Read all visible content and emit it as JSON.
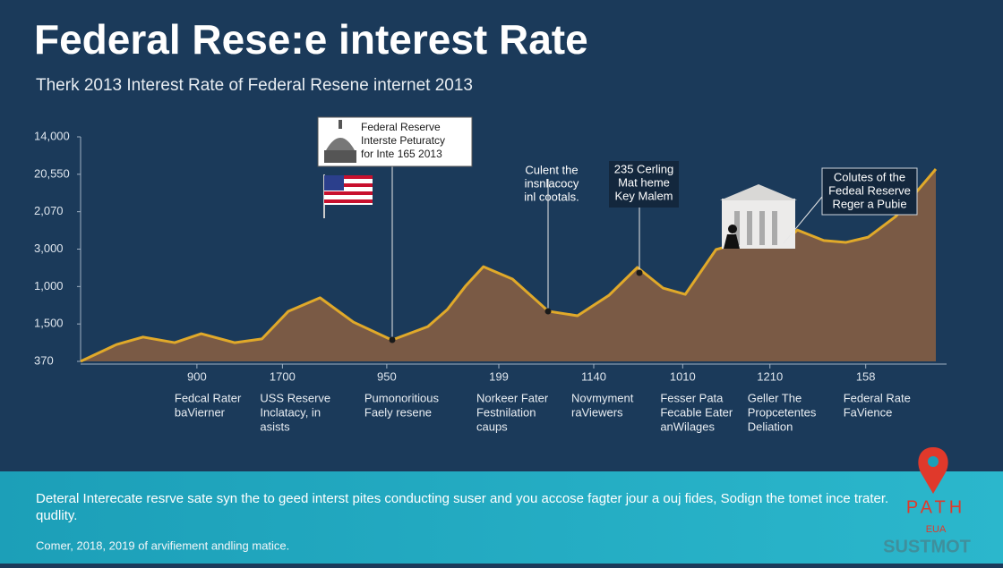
{
  "chart_data": {
    "type": "area",
    "title": "Federal Rese:e interest Rate",
    "subtitle": "Therk 2013 Interest Rate of Federal Resene internet 2013",
    "line_color": "#e0a92a",
    "fill_color": "#7a5a45",
    "xlim": [
      0,
      100
    ],
    "ylim": [
      0,
      6
    ],
    "yticks": [
      {
        "value": 0,
        "label": "370"
      },
      {
        "value": 1,
        "label": "1,500"
      },
      {
        "value": 2,
        "label": "1,000"
      },
      {
        "value": 3,
        "label": "3,000"
      },
      {
        "value": 4,
        "label": "2,070"
      },
      {
        "value": 5,
        "label": "20,550"
      },
      {
        "value": 6,
        "label": "14,000"
      }
    ],
    "xticks": [
      {
        "value": 13.6,
        "label": "900"
      },
      {
        "value": 23.6,
        "label": "1700"
      },
      {
        "value": 35.8,
        "label": "950"
      },
      {
        "value": 48.9,
        "label": "199"
      },
      {
        "value": 60,
        "label": "1140"
      },
      {
        "value": 70.4,
        "label": "1010"
      },
      {
        "value": 80.6,
        "label": "1210"
      },
      {
        "value": 91.8,
        "label": "158"
      }
    ],
    "x_descriptions": [
      [
        "Fedcal Rater",
        "baVierner"
      ],
      [
        "USS Reserve",
        "Inclatacy, in",
        "asists"
      ],
      [
        "Pumonoritious",
        "Faely resene"
      ],
      [
        "Norkeer Fater",
        "Festnilation",
        "caups"
      ],
      [
        "Novmyment",
        "raViewers"
      ],
      [
        "Fesser Pata",
        "Fecable Eater",
        "anWilages"
      ],
      [
        "Geller The",
        "Propcetentes",
        "Deliation"
      ],
      [
        "Federal Rate",
        "FaVience"
      ]
    ],
    "x": [
      0,
      4.2,
      7.3,
      11,
      14.1,
      18,
      21.2,
      24.3,
      28,
      31.9,
      36.4,
      40.6,
      42.9,
      45,
      47.1,
      50.5,
      54.7,
      58.1,
      61.8,
      65.1,
      68.1,
      70.7,
      74.3,
      78.5,
      82.2,
      83.8,
      86.9,
      89.5,
      92.1,
      95.3,
      100
    ],
    "values": [
      0,
      0.45,
      0.65,
      0.5,
      0.74,
      0.5,
      0.6,
      1.34,
      1.7,
      1.05,
      0.57,
      0.93,
      1.39,
      2.01,
      2.53,
      2.2,
      1.34,
      1.22,
      1.77,
      2.51,
      1.96,
      1.79,
      2.99,
      3.25,
      3.16,
      3.51,
      3.23,
      3.18,
      3.32,
      3.87,
      5.14
    ],
    "annotations": [
      [
        "Federal Reserve",
        "Interste Peturatcy",
        "for Inte 165 2013"
      ],
      [
        "Culent the",
        "insnlacocy",
        "inl cootals."
      ],
      [
        "235 Cerling",
        "Mat heme",
        "Key Malem"
      ],
      [
        "Colutes of the",
        "Fedeal Reserve",
        "Reger a Pubie"
      ]
    ]
  },
  "footer": {
    "text_lines": [
      "Deteral Interecate resrve sate syn the to geed interst pites conducting suser and you accose fagter jour a ouj fides, Sodign the tomet ince trater.",
      "qudlity."
    ],
    "note": "Comer, 2018, 2019 of arvifiement andling matice.",
    "logo": {
      "main": "PATH",
      "sub": "EUA",
      "bottom": "SUSTMOT"
    }
  }
}
